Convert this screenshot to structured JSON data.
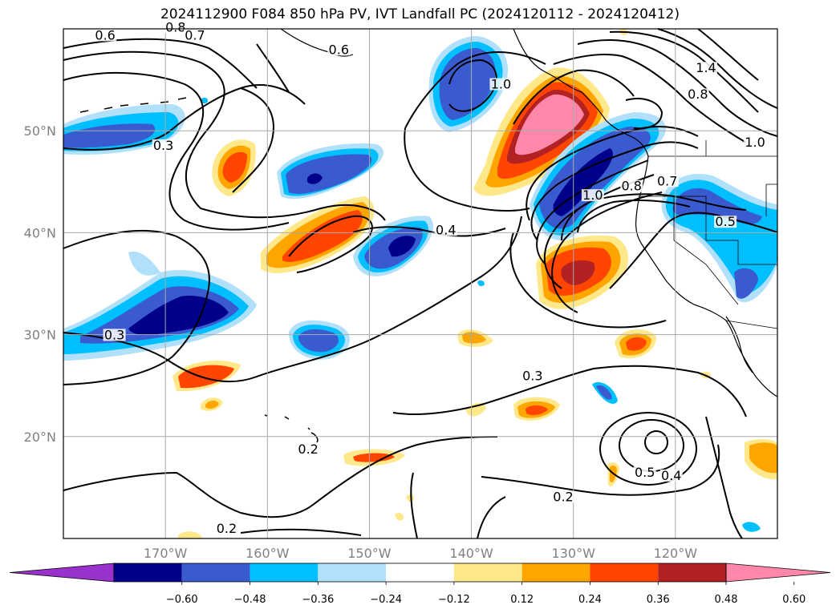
{
  "title": "2024112900 F084 850 hPa PV, IVT Landfall PC (2024120112 - 2024120412)",
  "map": {
    "lon_range": [
      -180,
      -110
    ],
    "lat_range": [
      10,
      60
    ],
    "lon_ticks": [
      {
        "value": -170,
        "label": "170°W"
      },
      {
        "value": -160,
        "label": "160°W"
      },
      {
        "value": -150,
        "label": "150°W"
      },
      {
        "value": -140,
        "label": "140°W"
      },
      {
        "value": -130,
        "label": "130°W"
      },
      {
        "value": -120,
        "label": "120°W"
      }
    ],
    "lat_ticks": [
      {
        "value": 50,
        "label": "50°N"
      },
      {
        "value": 40,
        "label": "40°N"
      },
      {
        "value": 30,
        "label": "30°N"
      },
      {
        "value": 20,
        "label": "20°N"
      }
    ],
    "grid": true,
    "contour_labels": [
      {
        "text": "0.6",
        "lon": -175.9,
        "lat": 59.1
      },
      {
        "text": "0.8",
        "lon": -169.0,
        "lat": 59.9
      },
      {
        "text": "0.7",
        "lon": -167.1,
        "lat": 59.1
      },
      {
        "text": "0.6",
        "lon": -153.0,
        "lat": 57.7
      },
      {
        "text": "0.3",
        "lon": -170.2,
        "lat": 48.3
      },
      {
        "text": "1.0",
        "lon": -137.1,
        "lat": 54.3
      },
      {
        "text": "1.4",
        "lon": -117.0,
        "lat": 55.9
      },
      {
        "text": "0.8",
        "lon": -117.8,
        "lat": 53.3
      },
      {
        "text": "1.0",
        "lon": -112.2,
        "lat": 48.6
      },
      {
        "text": "1.0",
        "lon": -128.1,
        "lat": 43.4
      },
      {
        "text": "0.8",
        "lon": -124.3,
        "lat": 44.3
      },
      {
        "text": "0.7",
        "lon": -120.8,
        "lat": 44.8
      },
      {
        "text": "0.5",
        "lon": -115.1,
        "lat": 40.8
      },
      {
        "text": "0.4",
        "lon": -142.5,
        "lat": 40.0
      },
      {
        "text": "0.3",
        "lon": -175.0,
        "lat": 29.7
      },
      {
        "text": "0.3",
        "lon": -134.0,
        "lat": 25.7
      },
      {
        "text": "0.2",
        "lon": -156.0,
        "lat": 18.5
      },
      {
        "text": "0.5",
        "lon": -123.0,
        "lat": 16.2
      },
      {
        "text": "0.4",
        "lon": -120.4,
        "lat": 15.9
      },
      {
        "text": "0.2",
        "lon": -131.0,
        "lat": 13.8
      },
      {
        "text": "0.2",
        "lon": -164.0,
        "lat": 10.7
      }
    ]
  },
  "colorbar": {
    "colors": [
      "#9932cc",
      "#00008b",
      "#3a5bd0",
      "#00bfff",
      "#b0e0fa",
      "#ffffff",
      "#ffe88a",
      "#ffa500",
      "#ff4500",
      "#b22222",
      "#ff88aa"
    ],
    "tick_labels": [
      "−0.60",
      "−0.48",
      "−0.36",
      "−0.24",
      "−0.12",
      "0.12",
      "0.24",
      "0.36",
      "0.48",
      "0.60"
    ]
  },
  "colors": {
    "pink": "#ff88aa",
    "darkred": "#b22222",
    "redorange": "#ff4500",
    "orange": "#ffa500",
    "lightyellow": "#ffe88a",
    "lightblue": "#b0e0fa",
    "cyan": "#00bfff",
    "royal": "#3a5bd0",
    "navy": "#00008b"
  }
}
